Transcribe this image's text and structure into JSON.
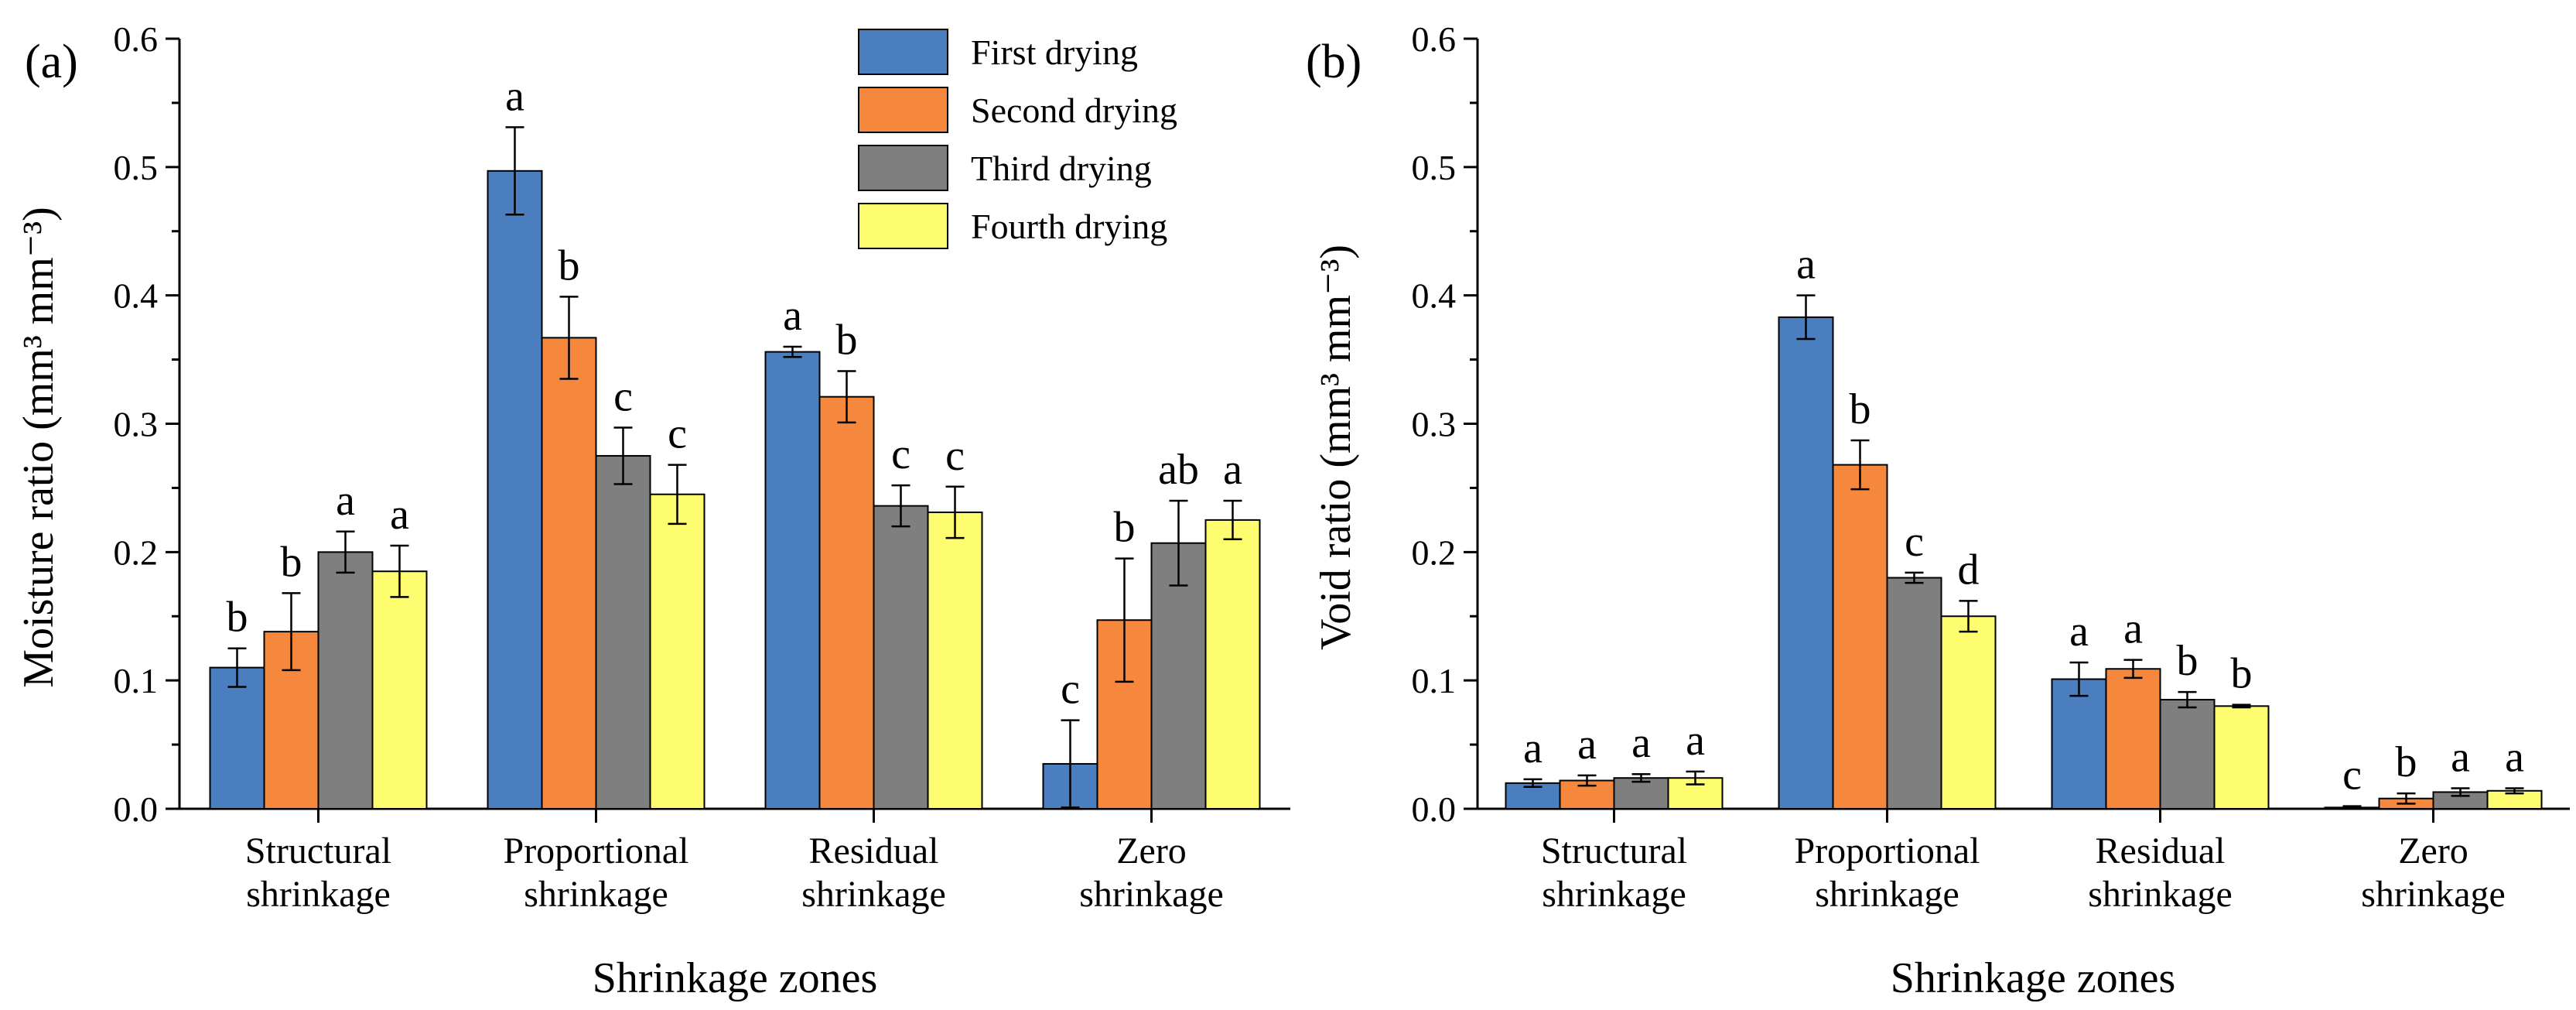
{
  "legend": {
    "entries": [
      "First drying",
      "Second drying",
      "Third drying",
      "Fourth drying"
    ],
    "colors": [
      "#4a7ebf",
      "#f6883d",
      "#7f7f7f",
      "#fdfd6f"
    ]
  },
  "chart_data": [
    {
      "type": "bar",
      "panel_label": "(a)",
      "title": "",
      "xlabel": "Shrinkage zones",
      "ylabel": "Moisture ratio (mm³ mm⁻³)",
      "ylim": [
        0,
        0.6
      ],
      "yticks": [
        "0.0",
        "0.1",
        "0.2",
        "0.3",
        "0.4",
        "0.5",
        "0.6"
      ],
      "categories": [
        [
          "Structural",
          "shrinkage"
        ],
        [
          "Proportional",
          "shrinkage"
        ],
        [
          "Residual",
          "shrinkage"
        ],
        [
          "Zero",
          "shrinkage"
        ]
      ],
      "legend_position": "top-right",
      "series": [
        {
          "name": "First drying",
          "values": [
            0.11,
            0.497,
            0.356,
            0.035
          ],
          "errors": [
            0.015,
            0.034,
            0.004,
            0.034
          ],
          "labels": [
            "b",
            "a",
            "a",
            "c"
          ]
        },
        {
          "name": "Second drying",
          "values": [
            0.138,
            0.367,
            0.321,
            0.147
          ],
          "errors": [
            0.03,
            0.032,
            0.02,
            0.048
          ],
          "labels": [
            "b",
            "b",
            "b",
            "b"
          ]
        },
        {
          "name": "Third drying",
          "values": [
            0.2,
            0.275,
            0.236,
            0.207
          ],
          "errors": [
            0.016,
            0.022,
            0.016,
            0.033
          ],
          "labels": [
            "a",
            "c",
            "c",
            "ab"
          ]
        },
        {
          "name": "Fourth drying",
          "values": [
            0.185,
            0.245,
            0.231,
            0.225
          ],
          "errors": [
            0.02,
            0.023,
            0.02,
            0.015
          ],
          "labels": [
            "a",
            "c",
            "c",
            "a"
          ]
        }
      ]
    },
    {
      "type": "bar",
      "panel_label": "(b)",
      "title": "",
      "xlabel": "Shrinkage zones",
      "ylabel": "Void ratio (mm³ mm⁻³)",
      "ylim": [
        0,
        0.6
      ],
      "yticks": [
        "0.0",
        "0.1",
        "0.2",
        "0.3",
        "0.4",
        "0.5",
        "0.6"
      ],
      "categories": [
        [
          "Structural",
          "shrinkage"
        ],
        [
          "Proportional",
          "shrinkage"
        ],
        [
          "Residual",
          "shrinkage"
        ],
        [
          "Zero",
          "shrinkage"
        ]
      ],
      "legend_position": "none",
      "series": [
        {
          "name": "First drying",
          "values": [
            0.02,
            0.383,
            0.101,
            0.001
          ],
          "errors": [
            0.003,
            0.017,
            0.013,
            0.001
          ],
          "labels": [
            "a",
            "a",
            "a",
            "c"
          ]
        },
        {
          "name": "Second drying",
          "values": [
            0.022,
            0.268,
            0.109,
            0.008
          ],
          "errors": [
            0.004,
            0.019,
            0.007,
            0.004
          ],
          "labels": [
            "a",
            "b",
            "a",
            "b"
          ]
        },
        {
          "name": "Third drying",
          "values": [
            0.024,
            0.18,
            0.085,
            0.013
          ],
          "errors": [
            0.003,
            0.004,
            0.006,
            0.003
          ],
          "labels": [
            "a",
            "c",
            "b",
            "a"
          ]
        },
        {
          "name": "Fourth drying",
          "values": [
            0.024,
            0.15,
            0.08,
            0.014
          ],
          "errors": [
            0.005,
            0.012,
            0.001,
            0.002
          ],
          "labels": [
            "a",
            "d",
            "b",
            "a"
          ]
        }
      ]
    }
  ]
}
